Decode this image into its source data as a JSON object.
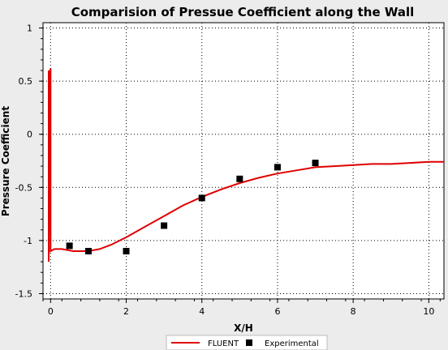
{
  "chart_data": {
    "type": "line",
    "title": "Comparision of Pressue Coefficient along the Wall",
    "xlabel": "X/H",
    "ylabel": "Pressure Coefficient",
    "xlim": [
      -0.2,
      10.4
    ],
    "ylim": [
      -1.55,
      1.05
    ],
    "x_ticks": [
      "0",
      "2",
      "4",
      "6",
      "8",
      "10"
    ],
    "x_tick_values": [
      0,
      2,
      4,
      6,
      8,
      10
    ],
    "y_ticks": [
      "1",
      "0.5",
      "0",
      "-0.5",
      "-1",
      "-1.5"
    ],
    "y_tick_values": [
      1,
      0.5,
      0,
      -0.5,
      -1,
      -1.5
    ],
    "grid": true,
    "legend_position": "bottom",
    "series": [
      {
        "name": "FLUENT",
        "type": "line",
        "color": "#e00000",
        "x": [
          -0.05,
          -0.05,
          -0.02,
          0.0,
          0.0,
          0.1,
          0.3,
          0.6,
          1.0,
          1.3,
          1.6,
          2.0,
          2.5,
          3.0,
          3.5,
          4.0,
          4.5,
          5.0,
          5.5,
          6.0,
          6.5,
          7.0,
          7.5,
          8.0,
          8.5,
          9.0,
          9.5,
          10.0,
          10.4
        ],
        "y": [
          0.6,
          -1.2,
          0.55,
          0.62,
          -1.1,
          -1.08,
          -1.08,
          -1.1,
          -1.1,
          -1.08,
          -1.04,
          -0.97,
          -0.87,
          -0.77,
          -0.67,
          -0.59,
          -0.52,
          -0.46,
          -0.41,
          -0.37,
          -0.34,
          -0.31,
          -0.3,
          -0.29,
          -0.28,
          -0.28,
          -0.27,
          -0.26,
          -0.26
        ]
      },
      {
        "name": "Experimental",
        "type": "scatter",
        "color": "#000000",
        "x": [
          0.5,
          1.0,
          2.0,
          3.0,
          4.0,
          5.0,
          6.0,
          7.0
        ],
        "y": [
          -1.05,
          -1.1,
          -1.1,
          -0.86,
          -0.6,
          -0.42,
          -0.31,
          -0.27
        ]
      }
    ]
  }
}
